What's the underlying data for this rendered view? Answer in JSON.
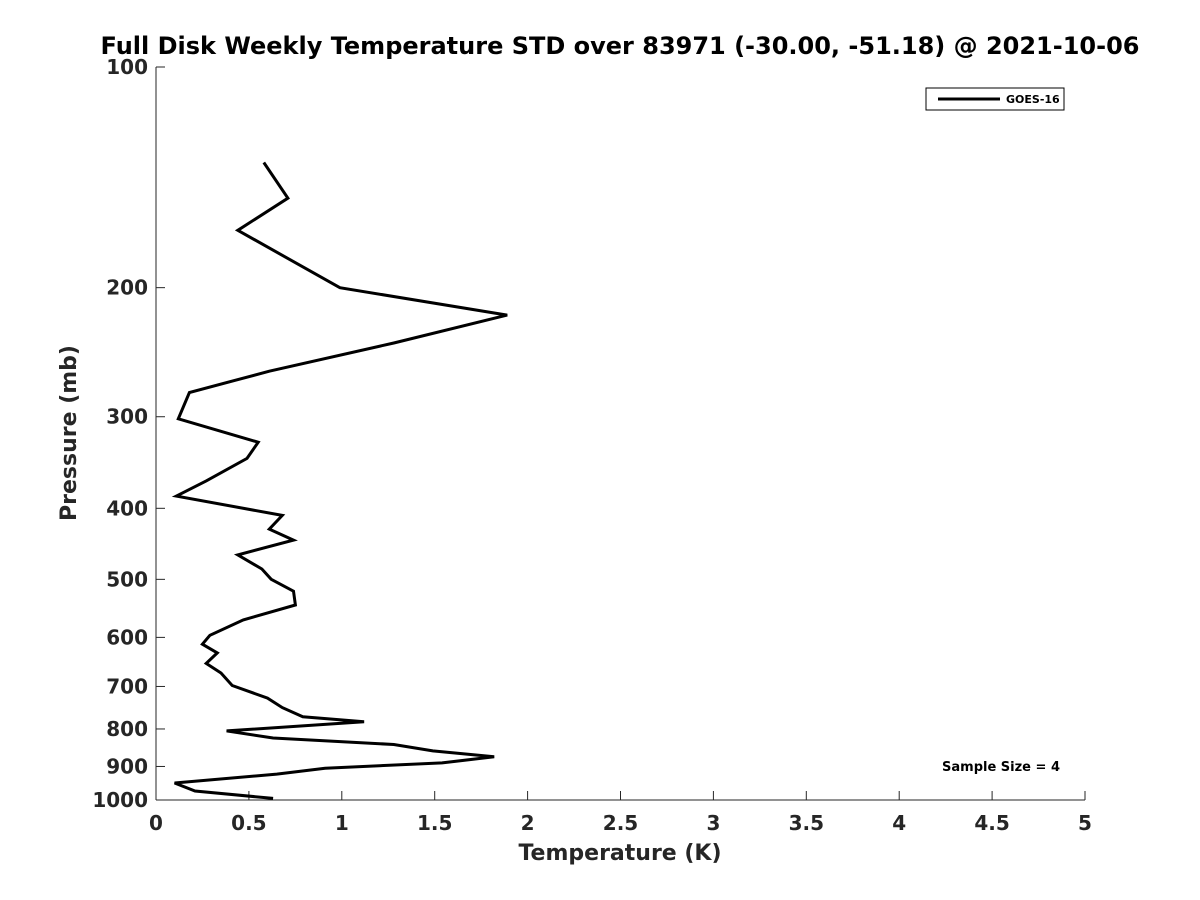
{
  "chart_data": {
    "type": "line",
    "title": "Full Disk Weekly Temperature STD over 83971 (-30.00, -51.18) @ 2021-10-06",
    "xlabel": "Temperature (K)",
    "ylabel": "Pressure (mb)",
    "xlim": [
      0,
      5
    ],
    "ylim": [
      100,
      1000
    ],
    "yscale": "log",
    "y_reversed": true,
    "grid": false,
    "legend_position": "top-right",
    "x_ticks": [
      "0",
      "0.5",
      "1",
      "1.5",
      "2",
      "2.5",
      "3",
      "3.5",
      "4",
      "4.5",
      "5"
    ],
    "x_tick_values": [
      0,
      0.5,
      1,
      1.5,
      2,
      2.5,
      3,
      3.5,
      4,
      4.5,
      5
    ],
    "y_ticks": [
      "100",
      "200",
      "300",
      "400",
      "500",
      "600",
      "700",
      "800",
      "900",
      "1000"
    ],
    "y_tick_values": [
      100,
      200,
      300,
      400,
      500,
      600,
      700,
      800,
      900,
      1000
    ],
    "series": [
      {
        "name": "GOES-16",
        "color": "#000000",
        "points": [
          [
            0.58,
            135
          ],
          [
            0.71,
            151
          ],
          [
            0.44,
            167
          ],
          [
            0.99,
            200
          ],
          [
            1.89,
            218
          ],
          [
            1.28,
            238
          ],
          [
            0.61,
            260
          ],
          [
            0.18,
            278
          ],
          [
            0.12,
            302
          ],
          [
            0.55,
            325
          ],
          [
            0.49,
            342
          ],
          [
            0.27,
            367
          ],
          [
            0.11,
            385
          ],
          [
            0.68,
            409
          ],
          [
            0.61,
            427
          ],
          [
            0.74,
            442
          ],
          [
            0.44,
            463
          ],
          [
            0.57,
            484
          ],
          [
            0.62,
            500
          ],
          [
            0.74,
            519
          ],
          [
            0.75,
            542
          ],
          [
            0.47,
            568
          ],
          [
            0.29,
            596
          ],
          [
            0.25,
            613
          ],
          [
            0.33,
            630
          ],
          [
            0.27,
            651
          ],
          [
            0.35,
            671
          ],
          [
            0.41,
            698
          ],
          [
            0.6,
            726
          ],
          [
            0.68,
            748
          ],
          [
            0.79,
            770
          ],
          [
            1.12,
            782
          ],
          [
            0.38,
            805
          ],
          [
            0.63,
            823
          ],
          [
            1.28,
            840
          ],
          [
            1.49,
            857
          ],
          [
            1.82,
            873
          ],
          [
            1.54,
            890
          ],
          [
            0.91,
            905
          ],
          [
            0.65,
            922
          ],
          [
            0.1,
            948
          ],
          [
            0.21,
            972
          ],
          [
            0.63,
            995
          ]
        ]
      }
    ],
    "annotation": "Sample Size = 4"
  }
}
